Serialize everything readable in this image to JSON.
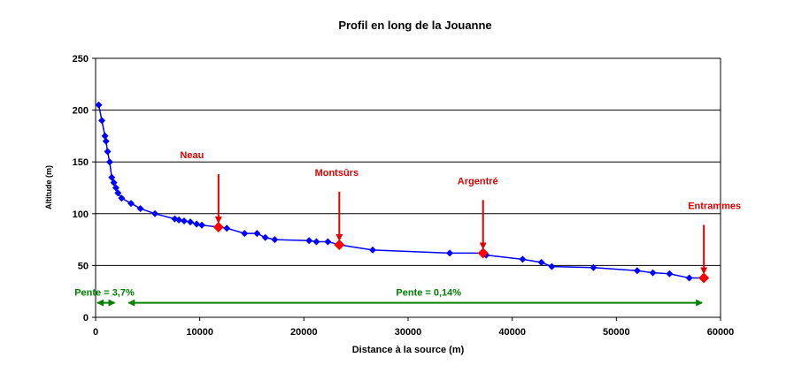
{
  "chart_data": {
    "type": "line",
    "title": "Profil en long de la Jouanne",
    "xlabel": "Distance à la source (m)",
    "ylabel": "Altitude (m)",
    "xlim": [
      0,
      60000
    ],
    "ylim": [
      0,
      250
    ],
    "x_ticks": [
      0,
      10000,
      20000,
      30000,
      40000,
      50000,
      60000
    ],
    "y_ticks": [
      0,
      50,
      100,
      150,
      200,
      250
    ],
    "grid": "horizontal",
    "colors": {
      "series": "#0000ff",
      "marker": "#0000ff",
      "highlight": "#ff0000",
      "annotation": "#e00000",
      "slope": "#008000",
      "grid": "#000000"
    },
    "series": [
      {
        "points": [
          [
            300,
            205
          ],
          [
            600,
            190
          ],
          [
            900,
            175
          ],
          [
            1000,
            170
          ],
          [
            1150,
            160
          ],
          [
            1350,
            150
          ],
          [
            1550,
            135
          ],
          [
            1750,
            130
          ],
          [
            1950,
            125
          ],
          [
            2150,
            120
          ],
          [
            2500,
            115
          ],
          [
            3400,
            110
          ],
          [
            4300,
            105
          ],
          [
            5700,
            100
          ],
          [
            7600,
            95
          ],
          [
            8000,
            94
          ],
          [
            8500,
            93
          ],
          [
            9100,
            92
          ],
          [
            9700,
            90
          ],
          [
            10200,
            89
          ],
          [
            11800,
            87
          ],
          [
            12600,
            86
          ],
          [
            14300,
            81
          ],
          [
            15500,
            81
          ],
          [
            16300,
            77
          ],
          [
            17200,
            75
          ],
          [
            20500,
            74
          ],
          [
            21200,
            73
          ],
          [
            22300,
            73
          ],
          [
            23400,
            70
          ],
          [
            26600,
            65
          ],
          [
            34000,
            62
          ],
          [
            37200,
            62
          ],
          [
            37500,
            60
          ],
          [
            41000,
            56
          ],
          [
            42800,
            53
          ],
          [
            43800,
            49
          ],
          [
            47800,
            48
          ],
          [
            52000,
            45
          ],
          [
            53500,
            43
          ],
          [
            55100,
            42
          ],
          [
            57000,
            38
          ],
          [
            58400,
            38
          ]
        ]
      }
    ],
    "highlights": [
      {
        "label": "Neau",
        "x": 11800,
        "y": 87
      },
      {
        "label": "Montsûrs",
        "x": 23400,
        "y": 70
      },
      {
        "label": "Argentré",
        "x": 37200,
        "y": 62
      },
      {
        "label": "Entrammes",
        "x": 58400,
        "y": 38
      }
    ],
    "slopes": [
      {
        "label": "Pente = 3,7%",
        "x_start": 0,
        "x_end": 2000,
        "y": 14
      },
      {
        "label": "Pente = 0,14%",
        "x_start": 3000,
        "x_end": 58400,
        "y": 14
      }
    ]
  }
}
